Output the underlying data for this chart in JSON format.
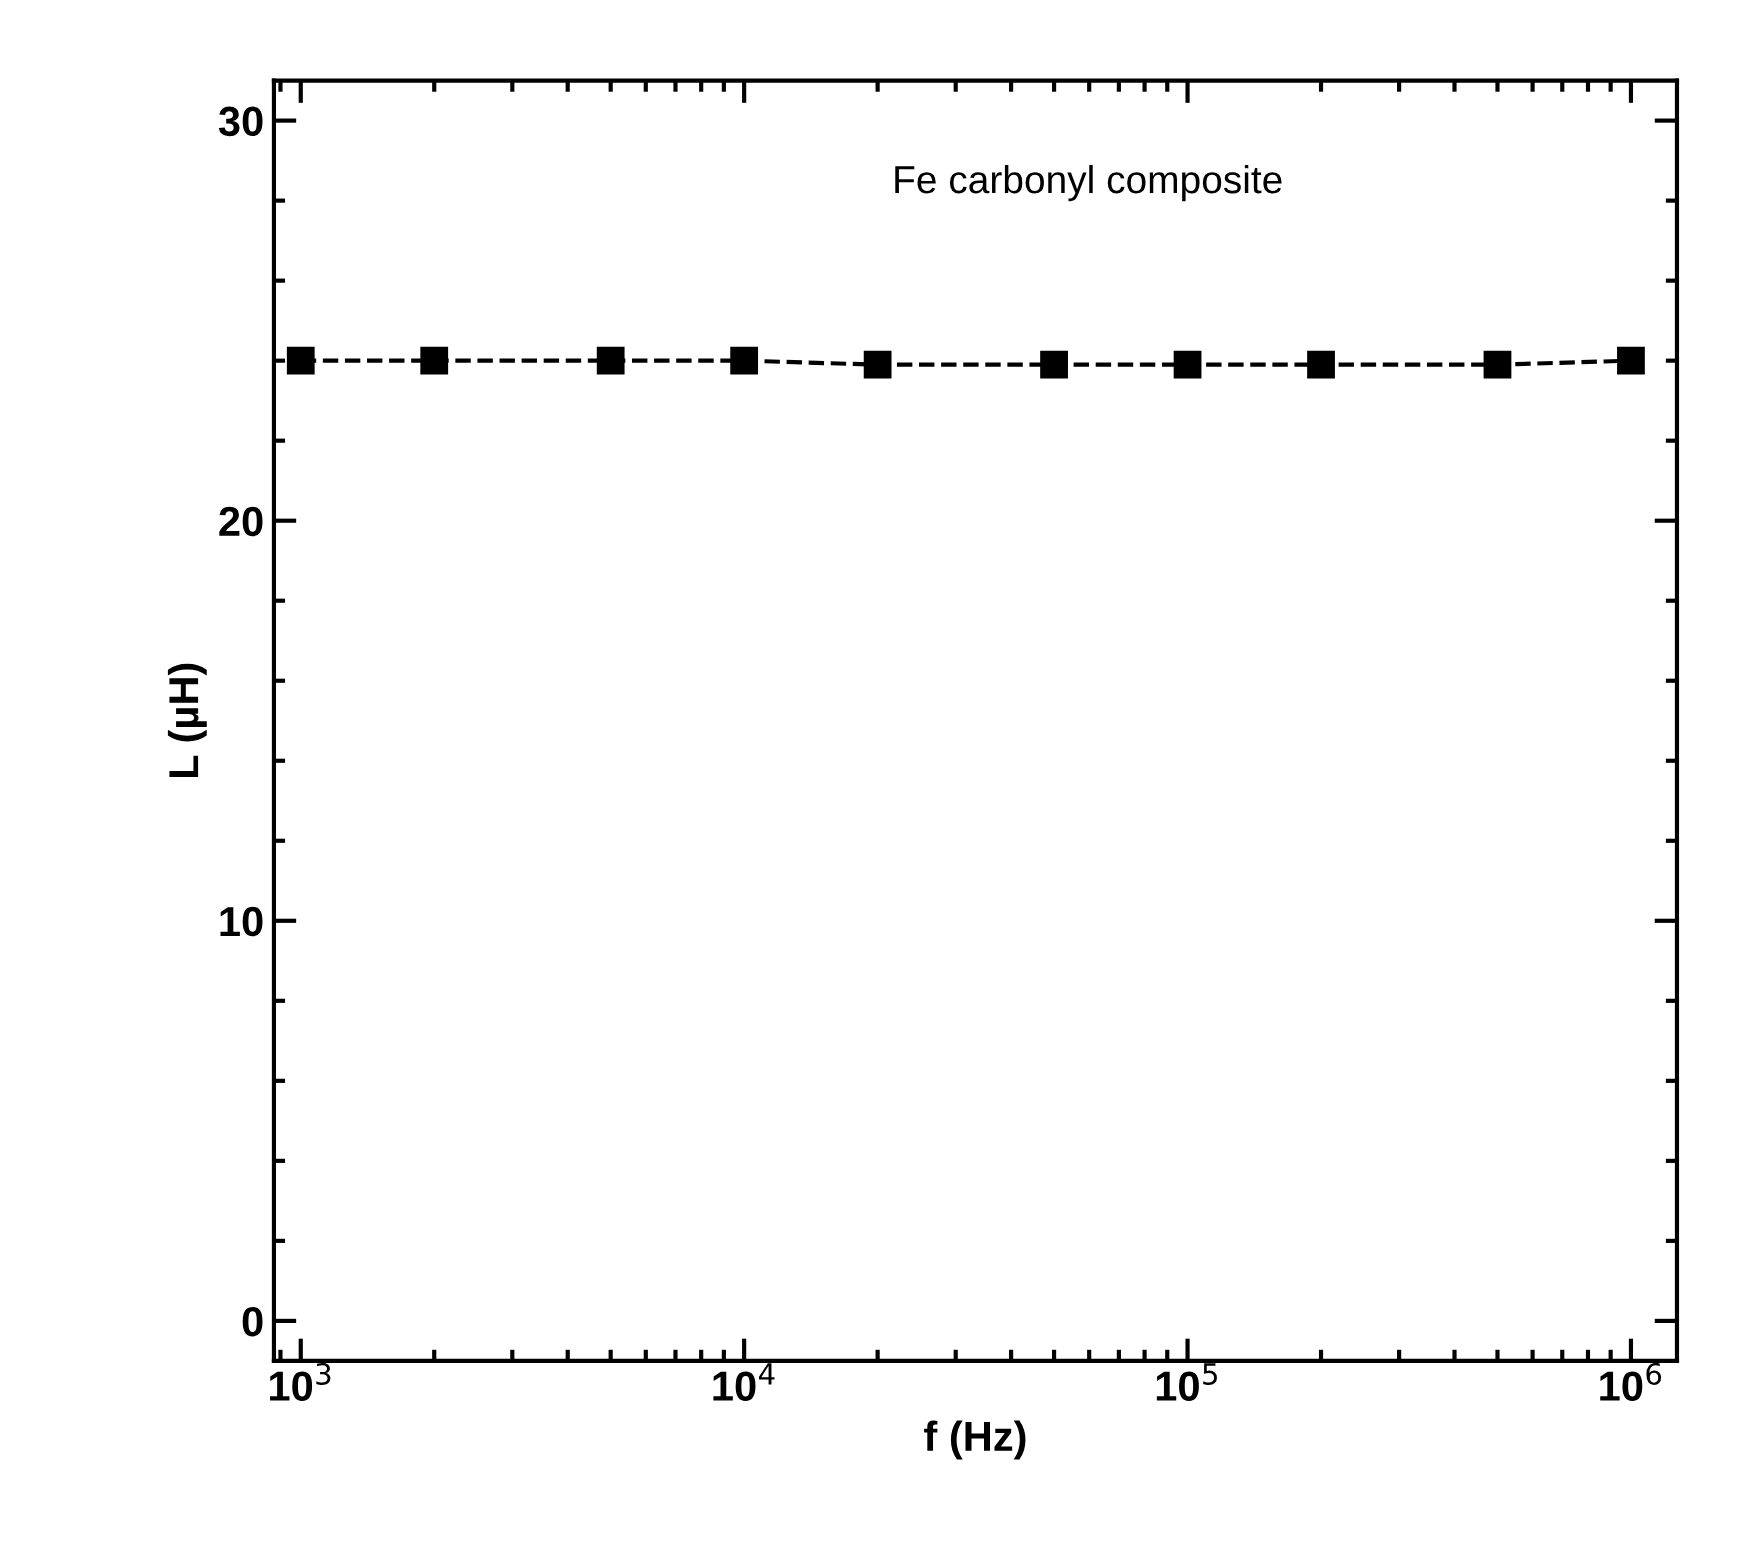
{
  "chart_data": {
    "type": "line",
    "xlabel": "f (Hz)",
    "ylabel": "L (µH)",
    "annotations": [
      "Fe carbonyl composite"
    ],
    "x": [
      1000,
      2000,
      5000,
      10000,
      20000,
      50000,
      100000,
      200000,
      500000,
      1000000
    ],
    "series": [
      {
        "color": "#000000",
        "values": [
          24.0,
          24.0,
          24.0,
          24.0,
          23.9,
          23.9,
          23.9,
          23.9,
          23.9,
          24.0
        ]
      }
    ],
    "marker": "square",
    "line_style": "dashed",
    "log": "x",
    "xlim": [
      870,
      1270000
    ],
    "xticks": [
      {
        "value": 1000,
        "label": "10$^{3}$"
      },
      {
        "value": 10000,
        "label": "10$^{4}$"
      },
      {
        "value": 100000,
        "label": "10$^{5}$"
      },
      {
        "value": 1000000,
        "label": "10$^{6}$"
      }
    ],
    "ylim": [
      -1,
      31
    ],
    "yticks": [
      0,
      10,
      20,
      30
    ],
    "grid": false,
    "legend": false
  }
}
